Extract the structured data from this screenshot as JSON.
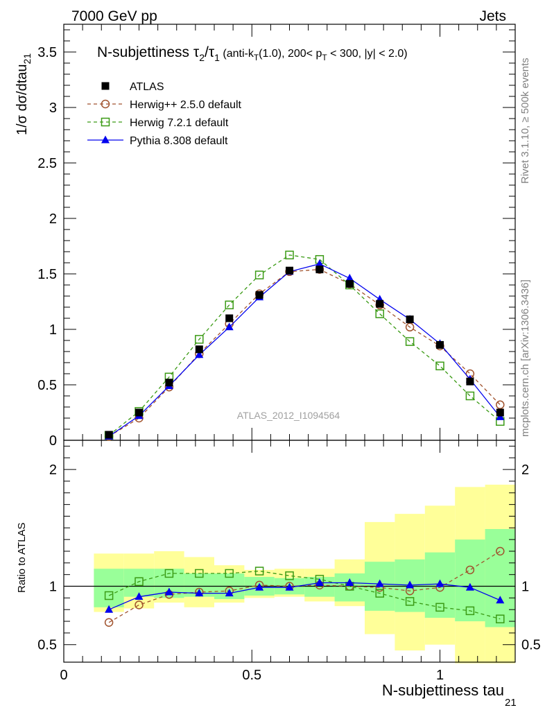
{
  "header": {
    "energy_label": "7000 GeV pp",
    "category_label": "Jets"
  },
  "side_labels": {
    "rivet": "Rivet 3.1.10, ≥ 500k events",
    "mcplots": "mcplots.cern.ch [arXiv:1306.3436]"
  },
  "watermark": "ATLAS_2012_I1094564",
  "chart_data": {
    "type": "line",
    "title": {
      "main": "N-subjettiness τ",
      "sub2": "2",
      "slash": "/τ",
      "sub1": "1",
      "cut_a": " (anti-k",
      "cut_t": "T",
      "cut_b": "(1.0), 200< p",
      "cut_c": " < 300, |y| < 2.0)"
    },
    "xlabel": "N-subjettiness tau",
    "xlabel_sub": "21",
    "ylabel": "1/σ dσ/dtau",
    "ylabel_sub": "21",
    "ratio_ylabel": "Ratio to ATLAS",
    "x": [
      0.12,
      0.2,
      0.28,
      0.36,
      0.44,
      0.52,
      0.6,
      0.68,
      0.76,
      0.84,
      0.92,
      1.0,
      1.08,
      1.16
    ],
    "xlim": [
      0,
      1.2
    ],
    "ylim": [
      0,
      3.75
    ],
    "ratio_ylim": [
      0.35,
      2.25
    ],
    "x_ticks": [
      "0",
      "0.5",
      "1"
    ],
    "y_ticks": [
      "0",
      "0.5",
      "1",
      "1.5",
      "2",
      "2.5",
      "3",
      "3.5"
    ],
    "ratio_ticks": [
      "0.5",
      "1",
      "2"
    ],
    "legend_position": "top-left",
    "series": [
      {
        "name": "ATLAS",
        "color": "#000000",
        "style": "data",
        "values": [
          0.05,
          0.25,
          0.52,
          0.82,
          1.1,
          1.31,
          1.53,
          1.54,
          1.41,
          1.23,
          1.09,
          0.86,
          0.53,
          0.25
        ]
      },
      {
        "name": "Herwig++ 2.5.0 default",
        "color": "#a0522d",
        "style": "circle-dashed",
        "values": [
          0.035,
          0.2,
          0.48,
          0.78,
          1.05,
          1.32,
          1.52,
          1.54,
          1.41,
          1.22,
          1.02,
          0.85,
          0.6,
          0.32
        ],
        "ratio": [
          0.69,
          0.84,
          0.93,
          0.95,
          0.96,
          1.01,
          1.0,
          1.01,
          1.0,
          0.99,
          0.96,
          0.99,
          1.14,
          1.3
        ]
      },
      {
        "name": "Herwig 7.2.1 default",
        "color": "#3a9a14",
        "style": "square-dashed",
        "values": [
          0.045,
          0.26,
          0.57,
          0.91,
          1.22,
          1.49,
          1.67,
          1.63,
          1.4,
          1.14,
          0.89,
          0.67,
          0.4,
          0.17
        ],
        "ratio": [
          0.92,
          1.04,
          1.11,
          1.11,
          1.11,
          1.13,
          1.09,
          1.06,
          1.0,
          0.94,
          0.87,
          0.82,
          0.79,
          0.72
        ]
      },
      {
        "name": "Pythia 8.308 default",
        "color": "#0000ee",
        "style": "triangle-solid",
        "values": [
          0.035,
          0.22,
          0.49,
          0.77,
          1.02,
          1.29,
          1.52,
          1.59,
          1.46,
          1.27,
          1.09,
          0.87,
          0.55,
          0.21
        ],
        "ratio": [
          0.8,
          0.91,
          0.95,
          0.94,
          0.94,
          0.99,
          0.99,
          1.03,
          1.03,
          1.02,
          1.01,
          1.02,
          0.99,
          0.88
        ]
      }
    ],
    "ratio_bands": {
      "green_lo": [
        0.82,
        0.91,
        0.9,
        0.91,
        0.89,
        0.92,
        0.93,
        0.91,
        0.87,
        0.79,
        0.78,
        0.73,
        0.7,
        0.65
      ],
      "green_hi": [
        1.15,
        1.15,
        1.15,
        1.11,
        1.11,
        1.08,
        1.07,
        1.08,
        1.11,
        1.21,
        1.23,
        1.29,
        1.4,
        1.49
      ],
      "yellow_lo": [
        0.78,
        0.81,
        0.86,
        0.82,
        0.86,
        0.9,
        0.91,
        0.87,
        0.83,
        0.59,
        0.45,
        0.5,
        0.34,
        0.34
      ],
      "yellow_hi": [
        1.28,
        1.28,
        1.3,
        1.25,
        1.18,
        1.14,
        1.15,
        1.15,
        1.23,
        1.55,
        1.62,
        1.69,
        1.85,
        1.87
      ]
    }
  }
}
